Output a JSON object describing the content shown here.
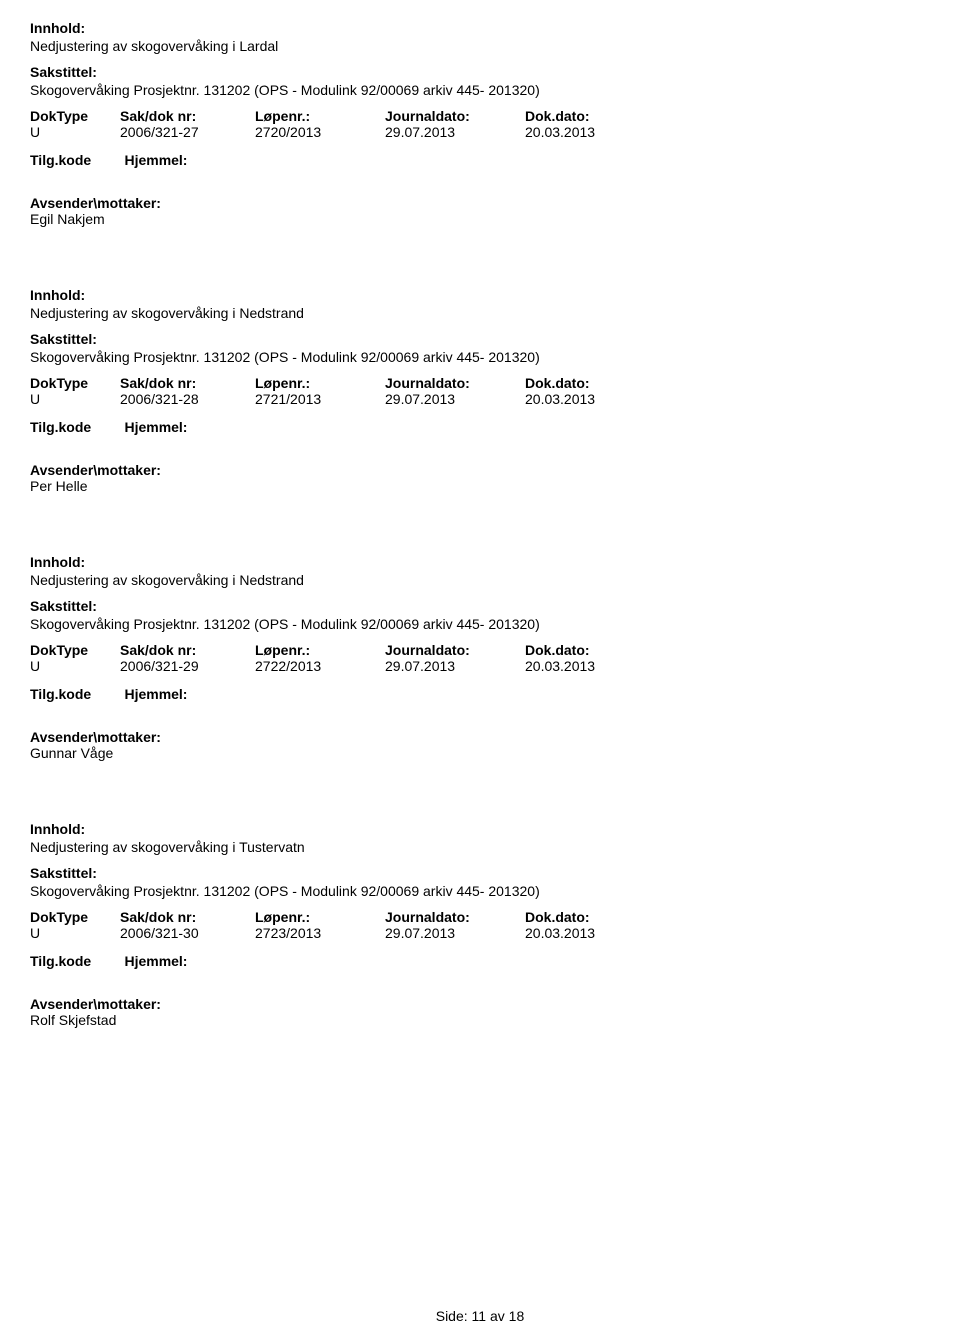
{
  "labels": {
    "innhold": "Innhold:",
    "sakstittel": "Sakstittel:",
    "doktype": "DokType",
    "saknr": "Sak/dok nr:",
    "lopenr": "Løpenr.:",
    "journaldato": "Journaldato:",
    "dokdato": "Dok.dato:",
    "tilgkode": "Tilg.kode",
    "hjemmel": "Hjemmel:",
    "avsender": "Avsender\\mottaker:"
  },
  "records": [
    {
      "innhold_text": "Nedjustering av skogovervåking i Lardal",
      "sakstittel_text": "Skogovervåking Prosjektnr. 131202 (OPS - Modulink 92/00069 arkiv 445- 201320)",
      "doktype": "U",
      "saknr": "2006/321-27",
      "lopenr": "2720/2013",
      "journaldato": "29.07.2013",
      "dokdato": "20.03.2013",
      "avsender": "Egil Nakjem"
    },
    {
      "innhold_text": "Nedjustering av skogovervåking i Nedstrand",
      "sakstittel_text": "Skogovervåking Prosjektnr. 131202 (OPS - Modulink 92/00069 arkiv 445- 201320)",
      "doktype": "U",
      "saknr": "2006/321-28",
      "lopenr": "2721/2013",
      "journaldato": "29.07.2013",
      "dokdato": "20.03.2013",
      "avsender": "Per Helle"
    },
    {
      "innhold_text": "Nedjustering av skogovervåking i Nedstrand",
      "sakstittel_text": "Skogovervåking Prosjektnr. 131202 (OPS - Modulink 92/00069 arkiv 445- 201320)",
      "doktype": "U",
      "saknr": "2006/321-29",
      "lopenr": "2722/2013",
      "journaldato": "29.07.2013",
      "dokdato": "20.03.2013",
      "avsender": "Gunnar Våge"
    },
    {
      "innhold_text": "Nedjustering av skogovervåking i Tustervatn",
      "sakstittel_text": "Skogovervåking Prosjektnr. 131202 (OPS - Modulink 92/00069 arkiv 445- 201320)",
      "doktype": "U",
      "saknr": "2006/321-30",
      "lopenr": "2723/2013",
      "journaldato": "29.07.2013",
      "dokdato": "20.03.2013",
      "avsender": "Rolf Skjefstad"
    }
  ],
  "footer": {
    "label": "Side:",
    "current": "11",
    "of": "av",
    "total": "18"
  }
}
